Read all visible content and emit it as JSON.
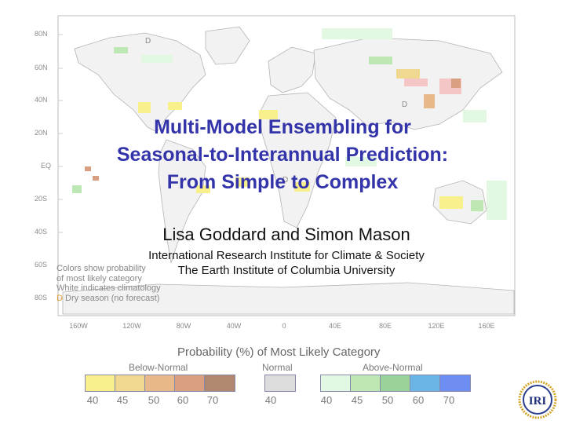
{
  "title": {
    "line1": "Multi-Model Ensembling for",
    "line2": "Seasonal-to-Interannual Prediction:",
    "line3": "From Simple to Complex"
  },
  "authors": "Lisa Goddard and Simon Mason",
  "affiliation": {
    "line1": "International Research Institute for Climate & Society",
    "line2": "The Earth Institute of Columbia University"
  },
  "map": {
    "lat_labels": [
      "80N",
      "60N",
      "40N",
      "20N",
      "EQ",
      "20S",
      "40S",
      "60S",
      "80S"
    ],
    "lon_labels": [
      "160W",
      "120W",
      "80W",
      "40W",
      "0",
      "40E",
      "80E",
      "120E",
      "160E"
    ],
    "dry_marker": "D",
    "legend_note": {
      "line1": "Colors show probability",
      "line2": "of most likely category",
      "line3": "White indicates climatology",
      "line4_prefix": "D",
      "line4_rest": "Dry season (no forecast)"
    }
  },
  "probability_legend": {
    "title": "Probability (%) of Most Likely Category",
    "below_label": "Below-Normal",
    "normal_label": "Normal",
    "above_label": "Above-Normal",
    "below_ticks": [
      "40",
      "45",
      "50",
      "60",
      "70"
    ],
    "normal_ticks": [
      "40"
    ],
    "above_ticks": [
      "40",
      "45",
      "50",
      "60",
      "70"
    ],
    "below_colors": [
      "#f7f08c",
      "#f0d890",
      "#e6b88a",
      "#d8a080",
      "#b08870"
    ],
    "normal_colors": [
      "#dcdcdc"
    ],
    "above_colors": [
      "#e2f8e2",
      "#bde8b4",
      "#9ad39a",
      "#6ab4e6",
      "#6e8ef2"
    ]
  },
  "logo": {
    "text": "IRI",
    "icon": "iri-globe-logo-icon"
  }
}
